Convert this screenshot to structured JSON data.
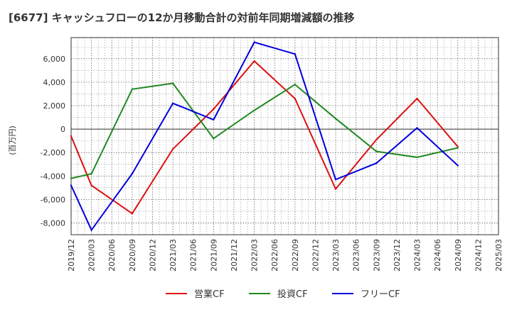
{
  "chart_data": {
    "type": "line",
    "title": "[6677]  キャッシュフローの12か月移動合計の対前年同期増減額の推移",
    "ylabel": "(百万円)",
    "xlabel": "",
    "ylim": [
      -9000,
      7800
    ],
    "yticks": [
      -8000,
      -6000,
      -4000,
      -2000,
      0,
      2000,
      4000,
      6000
    ],
    "ytick_labels": [
      "-8,000",
      "-6,000",
      "-4,000",
      "-2,000",
      "0",
      "2,000",
      "4,000",
      "6,000"
    ],
    "x_categories": [
      "2019/12",
      "2020/03",
      "2020/06",
      "2020/09",
      "2020/12",
      "2021/03",
      "2021/06",
      "2021/09",
      "2021/12",
      "2022/03",
      "2022/06",
      "2022/09",
      "2022/12",
      "2023/03",
      "2023/06",
      "2023/09",
      "2023/12",
      "2024/03",
      "2024/06",
      "2024/09",
      "2024/12",
      "2025/03"
    ],
    "grid": true,
    "legend_position": "bottom",
    "series": [
      {
        "name": "営業CF",
        "color": "#dd1111",
        "points": [
          [
            "2019/12",
            -600
          ],
          [
            "2020/03",
            -4800
          ],
          [
            "2020/09",
            -7200
          ],
          [
            "2021/03",
            -1700
          ],
          [
            "2021/09",
            1700
          ],
          [
            "2022/03",
            5800
          ],
          [
            "2022/09",
            2600
          ],
          [
            "2023/03",
            -5100
          ],
          [
            "2023/09",
            -900
          ],
          [
            "2024/03",
            2600
          ],
          [
            "2024/09",
            -1500
          ]
        ]
      },
      {
        "name": "投資CF",
        "color": "#228822",
        "points": [
          [
            "2019/12",
            -4200
          ],
          [
            "2020/03",
            -3800
          ],
          [
            "2020/09",
            3400
          ],
          [
            "2021/03",
            3900
          ],
          [
            "2021/09",
            -800
          ],
          [
            "2022/03",
            1600
          ],
          [
            "2022/09",
            3800
          ],
          [
            "2023/03",
            900
          ],
          [
            "2023/09",
            -1900
          ],
          [
            "2024/03",
            -2400
          ],
          [
            "2024/09",
            -1600
          ]
        ]
      },
      {
        "name": "フリーCF",
        "color": "#0000dd",
        "points": [
          [
            "2019/12",
            -4800
          ],
          [
            "2020/03",
            -8600
          ],
          [
            "2020/09",
            -3800
          ],
          [
            "2021/03",
            2200
          ],
          [
            "2021/09",
            800
          ],
          [
            "2022/03",
            7400
          ],
          [
            "2022/09",
            6400
          ],
          [
            "2023/03",
            -4300
          ],
          [
            "2023/09",
            -2900
          ],
          [
            "2024/03",
            100
          ],
          [
            "2024/09",
            -3100
          ]
        ]
      }
    ]
  }
}
